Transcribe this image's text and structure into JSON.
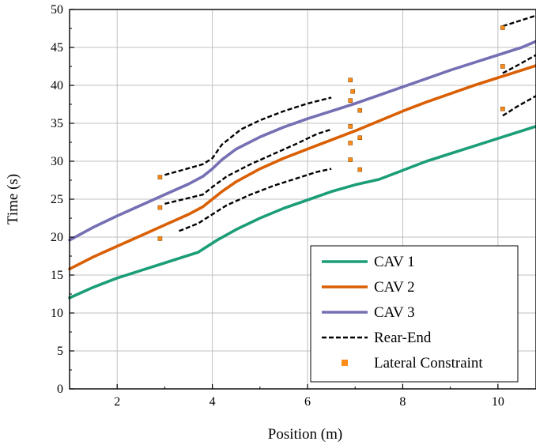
{
  "chart_data": {
    "type": "line",
    "xlabel": "Position (m)",
    "ylabel": "Time (s)",
    "xlim": [
      1,
      10.8
    ],
    "ylim": [
      0,
      50
    ],
    "xticks": [
      2,
      4,
      6,
      8,
      10
    ],
    "yticks": [
      0,
      5,
      10,
      15,
      20,
      25,
      30,
      35,
      40,
      45,
      50
    ],
    "grid": true,
    "legend_position": "bottom-right",
    "series": [
      {
        "name": "CAV 1",
        "style": "solid",
        "color": "#1b9e77",
        "x": [
          1.0,
          1.5,
          2.0,
          2.5,
          3.0,
          3.5,
          3.7,
          3.9,
          4.1,
          4.5,
          5.0,
          5.5,
          6.0,
          6.5,
          7.0,
          7.5,
          8.0,
          8.5,
          9.0,
          9.5,
          10.0,
          10.5,
          10.8
        ],
        "y": [
          12.0,
          13.4,
          14.6,
          15.6,
          16.6,
          17.6,
          18.0,
          18.8,
          19.6,
          21.0,
          22.5,
          23.8,
          24.9,
          26.0,
          26.9,
          27.6,
          28.8,
          30.0,
          31.0,
          32.0,
          33.0,
          34.0,
          34.6
        ]
      },
      {
        "name": "CAV 2",
        "style": "solid",
        "color": "#d95f02",
        "x": [
          1.0,
          1.5,
          2.0,
          2.5,
          3.0,
          3.5,
          3.8,
          4.0,
          4.2,
          4.5,
          5.0,
          5.5,
          6.0,
          6.5,
          7.0,
          7.5,
          8.0,
          8.5,
          9.0,
          9.5,
          10.0,
          10.5,
          10.8
        ],
        "y": [
          15.8,
          17.4,
          18.8,
          20.2,
          21.6,
          23.0,
          24.0,
          25.0,
          26.0,
          27.3,
          29.0,
          30.4,
          31.6,
          32.8,
          34.0,
          35.3,
          36.6,
          37.8,
          38.9,
          40.0,
          41.0,
          42.0,
          42.6
        ]
      },
      {
        "name": "CAV 3",
        "style": "solid",
        "color": "#7570b3",
        "x": [
          1.0,
          1.5,
          2.0,
          2.5,
          3.0,
          3.5,
          3.8,
          4.0,
          4.2,
          4.5,
          5.0,
          5.5,
          6.0,
          6.5,
          7.0,
          7.5,
          8.0,
          8.5,
          9.0,
          9.5,
          10.0,
          10.5,
          10.8
        ],
        "y": [
          19.6,
          21.3,
          22.8,
          24.2,
          25.6,
          27.0,
          28.0,
          29.0,
          30.2,
          31.6,
          33.2,
          34.5,
          35.6,
          36.6,
          37.6,
          38.7,
          39.8,
          40.9,
          42.0,
          43.0,
          44.0,
          45.0,
          45.8
        ]
      }
    ],
    "rear_end": {
      "name": "Rear-End",
      "style": "dashed",
      "color": "#000000",
      "segments": [
        {
          "x": [
            3.3,
            3.7,
            4.0,
            4.3,
            4.8,
            5.3,
            5.8,
            6.2,
            6.5
          ],
          "y": [
            20.8,
            21.8,
            23.0,
            24.2,
            25.6,
            26.8,
            27.8,
            28.6,
            29.0
          ]
        },
        {
          "x": [
            3.0,
            3.4,
            3.8,
            4.0,
            4.3,
            4.8,
            5.3,
            5.8,
            6.2,
            6.5
          ],
          "y": [
            24.4,
            25.0,
            25.6,
            26.6,
            28.0,
            29.6,
            31.0,
            32.4,
            33.6,
            34.2
          ]
        },
        {
          "x": [
            3.0,
            3.4,
            3.8,
            4.0,
            4.2,
            4.6,
            5.0,
            5.5,
            6.0,
            6.5
          ],
          "y": [
            28.2,
            28.9,
            29.6,
            30.4,
            32.2,
            34.2,
            35.4,
            36.6,
            37.6,
            38.4
          ]
        },
        {
          "x": [
            10.1,
            10.4,
            10.8
          ],
          "y": [
            36.0,
            37.2,
            38.6
          ]
        },
        {
          "x": [
            10.1,
            10.4,
            10.8
          ],
          "y": [
            41.6,
            42.6,
            44.0
          ]
        },
        {
          "x": [
            10.1,
            10.4,
            10.8
          ],
          "y": [
            47.8,
            48.4,
            49.2
          ]
        }
      ]
    },
    "lateral_constraint": {
      "name": "Lateral Constraint",
      "color": "#ff8c1a",
      "points": [
        {
          "x": 2.9,
          "y": 19.8
        },
        {
          "x": 2.9,
          "y": 23.9
        },
        {
          "x": 2.9,
          "y": 27.9
        },
        {
          "x": 6.9,
          "y": 30.2
        },
        {
          "x": 6.9,
          "y": 32.4
        },
        {
          "x": 6.9,
          "y": 34.6
        },
        {
          "x": 6.9,
          "y": 38.0
        },
        {
          "x": 6.95,
          "y": 39.2
        },
        {
          "x": 6.9,
          "y": 40.7
        },
        {
          "x": 7.1,
          "y": 28.9
        },
        {
          "x": 7.1,
          "y": 33.1
        },
        {
          "x": 7.1,
          "y": 36.7
        },
        {
          "x": 10.1,
          "y": 36.9
        },
        {
          "x": 10.1,
          "y": 42.5
        },
        {
          "x": 10.1,
          "y": 47.6
        }
      ]
    }
  }
}
